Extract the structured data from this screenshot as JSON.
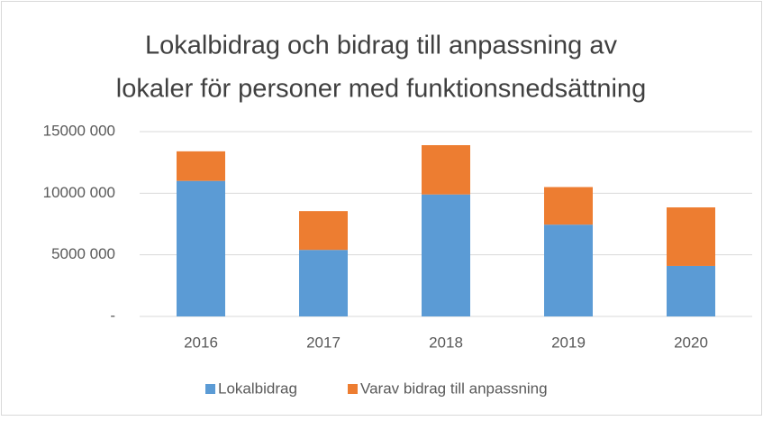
{
  "chart_data": {
    "type": "stacked_bar",
    "title": [
      "Lokalbidrag och bidrag till anpassning av",
      "lokaler för personer med funktionsnedsättning"
    ],
    "categories": [
      "2016",
      "2017",
      "2018",
      "2019",
      "2020"
    ],
    "series": [
      {
        "name": "Lokalbidrag",
        "color": "#5b9bd5",
        "values": [
          11000000,
          5400000,
          9900000,
          7450000,
          4100000
        ]
      },
      {
        "name": "Varav bidrag till anpassning",
        "color": "#ed7d31",
        "values": [
          2400000,
          3150000,
          4000000,
          3050000,
          4750000
        ]
      }
    ],
    "ylim": [
      0,
      15000000
    ],
    "yticks": [
      {
        "value": 0,
        "label": "-"
      },
      {
        "value": 5000000,
        "label": "5000 000"
      },
      {
        "value": 10000000,
        "label": "10000 000"
      },
      {
        "value": 15000000,
        "label": "15000 000"
      }
    ],
    "grid": true,
    "legend": "bottom"
  }
}
